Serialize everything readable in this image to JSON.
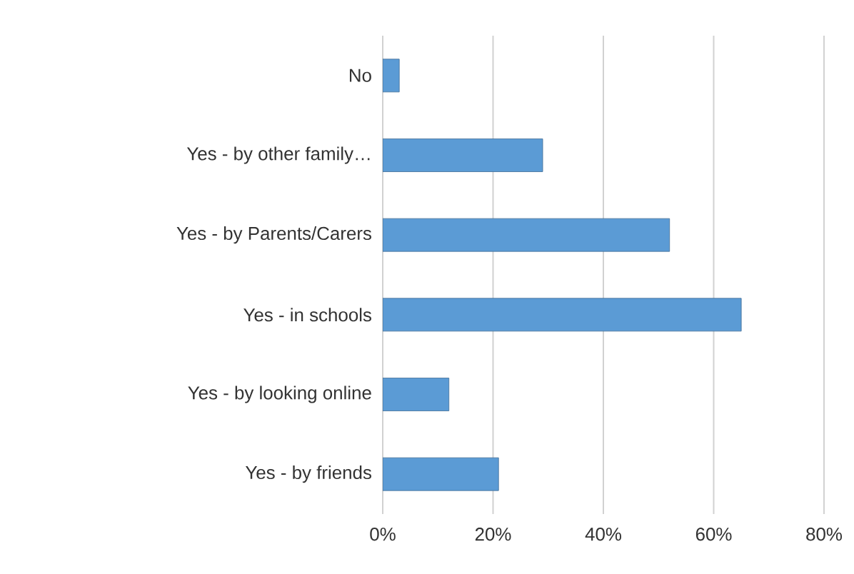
{
  "chart_data": {
    "type": "bar",
    "orientation": "horizontal",
    "categories": [
      "No",
      "Yes - by other family…",
      "Yes - by Parents/Carers",
      "Yes - in schools",
      "Yes - by looking online",
      "Yes - by friends"
    ],
    "values": [
      3,
      29,
      52,
      65,
      12,
      21
    ],
    "color": "#5b9bd5",
    "xlim": [
      0,
      80
    ],
    "xticks": [
      {
        "value": 0,
        "label": "0%"
      },
      {
        "value": 20,
        "label": "20%"
      },
      {
        "value": 40,
        "label": "40%"
      },
      {
        "value": 60,
        "label": "60%"
      },
      {
        "value": 80,
        "label": "80%"
      }
    ],
    "grid": "x"
  }
}
